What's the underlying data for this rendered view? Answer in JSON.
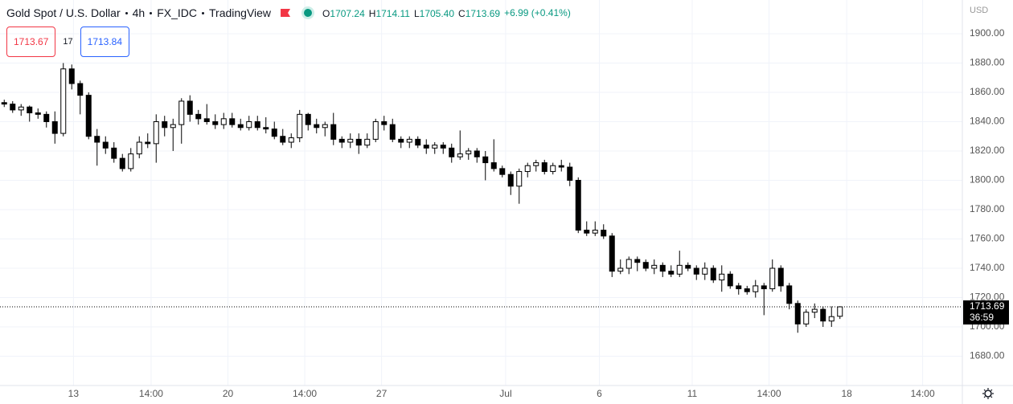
{
  "header": {
    "symbol": "Gold Spot / U.S. Dollar",
    "interval": "4h",
    "source": "FX_IDC",
    "provider": "TradingView",
    "ohlc": [
      {
        "label": "O",
        "value": "1707.24"
      },
      {
        "label": "H",
        "value": "1714.11"
      },
      {
        "label": "L",
        "value": "1705.40"
      },
      {
        "label": "C",
        "value": "1713.69"
      }
    ],
    "change": "+6.99 (+0.41%)",
    "sell": "1713.67",
    "spread": "17",
    "buy": "1713.84",
    "currency": "USD"
  },
  "chart_data": {
    "type": "candlestick",
    "up_color": "#ffffff",
    "down_color": "#000000",
    "grid": true,
    "ylim": [
      1660,
      1923
    ],
    "xlim": [
      0,
      114
    ],
    "yticks": [
      {
        "value": 1680,
        "label": "1680.00"
      },
      {
        "value": 1700,
        "label": "1700.00"
      },
      {
        "value": 1720,
        "label": "1720.00"
      },
      {
        "value": 1740,
        "label": "1740.00"
      },
      {
        "value": 1760,
        "label": "1760.00"
      },
      {
        "value": 1780,
        "label": "1780.00"
      },
      {
        "value": 1800,
        "label": "1800.00"
      },
      {
        "value": 1820,
        "label": "1820.00"
      },
      {
        "value": 1840,
        "label": "1840.00"
      },
      {
        "value": 1860,
        "label": "1860.00"
      },
      {
        "value": 1880,
        "label": "1880.00"
      },
      {
        "value": 1900,
        "label": "1900.00"
      }
    ],
    "xticks": [
      {
        "value": 8.7,
        "label": "13"
      },
      {
        "value": 17.9,
        "label": "14:00"
      },
      {
        "value": 27,
        "label": "20"
      },
      {
        "value": 36.1,
        "label": "14:00"
      },
      {
        "value": 45.2,
        "label": "27"
      },
      {
        "value": 59.9,
        "label": "Jul"
      },
      {
        "value": 71,
        "label": "6"
      },
      {
        "value": 82,
        "label": "11"
      },
      {
        "value": 91.1,
        "label": "14:00"
      },
      {
        "value": 100.3,
        "label": "18"
      },
      {
        "value": 109.3,
        "label": "14:00"
      }
    ],
    "last_price": 1713.69,
    "countdown": "36:59",
    "open": [
      1853,
      1852,
      1848,
      1850,
      1846,
      1845,
      1840,
      1832,
      1876,
      1866,
      1858,
      1830,
      1826,
      1822,
      1815,
      1808,
      1818,
      1826,
      1825,
      1840,
      1836,
      1838,
      1854,
      1845,
      1842,
      1840,
      1838,
      1842,
      1838,
      1836,
      1840,
      1836,
      1835,
      1830,
      1826,
      1829,
      1845,
      1838,
      1836,
      1838,
      1828,
      1826,
      1828,
      1824,
      1828,
      1840,
      1838,
      1828,
      1826,
      1828,
      1824,
      1822,
      1824,
      1822,
      1816,
      1818,
      1820,
      1816,
      1812,
      1808,
      1804,
      1796,
      1806,
      1810,
      1812,
      1806,
      1810,
      1809,
      1800,
      1766,
      1764,
      1766,
      1762,
      1738,
      1740,
      1746,
      1744,
      1740,
      1742,
      1738,
      1736,
      1742,
      1740,
      1736,
      1740,
      1732,
      1736,
      1728,
      1726,
      1724,
      1728,
      1726,
      1740,
      1728,
      1716,
      1702,
      1710,
      1712,
      1704,
      1707.24
    ],
    "high": [
      1855,
      1854,
      1852,
      1851,
      1849,
      1847,
      1847,
      1880,
      1879,
      1868,
      1860,
      1835,
      1830,
      1826,
      1818,
      1822,
      1830,
      1832,
      1845,
      1844,
      1842,
      1856,
      1858,
      1848,
      1852,
      1845,
      1846,
      1846,
      1842,
      1844,
      1844,
      1843,
      1840,
      1835,
      1832,
      1848,
      1846,
      1842,
      1840,
      1846,
      1830,
      1832,
      1832,
      1832,
      1842,
      1844,
      1842,
      1830,
      1830,
      1830,
      1828,
      1826,
      1826,
      1825,
      1834,
      1822,
      1822,
      1820,
      1828,
      1810,
      1806,
      1808,
      1812,
      1814,
      1814,
      1812,
      1814,
      1812,
      1802,
      1772,
      1772,
      1770,
      1764,
      1746,
      1748,
      1748,
      1746,
      1746,
      1744,
      1742,
      1752,
      1744,
      1742,
      1744,
      1742,
      1742,
      1738,
      1730,
      1728,
      1732,
      1730,
      1746,
      1742,
      1730,
      1718,
      1712,
      1716,
      1714,
      1714,
      1714.11
    ],
    "low": [
      1850,
      1846,
      1844,
      1840,
      1842,
      1836,
      1825,
      1830,
      1862,
      1845,
      1828,
      1810,
      1818,
      1812,
      1806,
      1806,
      1815,
      1822,
      1812,
      1830,
      1820,
      1825,
      1840,
      1838,
      1838,
      1835,
      1835,
      1836,
      1834,
      1834,
      1834,
      1832,
      1828,
      1824,
      1822,
      1826,
      1834,
      1832,
      1830,
      1824,
      1822,
      1822,
      1818,
      1822,
      1826,
      1834,
      1826,
      1822,
      1822,
      1822,
      1818,
      1818,
      1818,
      1812,
      1814,
      1814,
      1812,
      1800,
      1806,
      1802,
      1790,
      1784,
      1802,
      1806,
      1804,
      1804,
      1806,
      1796,
      1764,
      1762,
      1762,
      1760,
      1734,
      1736,
      1736,
      1738,
      1738,
      1736,
      1734,
      1734,
      1734,
      1738,
      1732,
      1732,
      1730,
      1724,
      1726,
      1722,
      1722,
      1720,
      1708,
      1724,
      1724,
      1712,
      1696,
      1700,
      1706,
      1700,
      1700,
      1705.4
    ],
    "close": [
      1852,
      1848,
      1850,
      1846,
      1845,
      1840,
      1832,
      1876,
      1866,
      1858,
      1830,
      1826,
      1822,
      1815,
      1808,
      1818,
      1826,
      1825,
      1840,
      1836,
      1838,
      1854,
      1845,
      1842,
      1840,
      1838,
      1842,
      1838,
      1836,
      1840,
      1836,
      1835,
      1830,
      1826,
      1829,
      1845,
      1838,
      1836,
      1838,
      1828,
      1826,
      1828,
      1824,
      1828,
      1840,
      1838,
      1828,
      1826,
      1828,
      1824,
      1822,
      1824,
      1822,
      1816,
      1818,
      1820,
      1816,
      1812,
      1808,
      1804,
      1796,
      1806,
      1810,
      1812,
      1806,
      1810,
      1809,
      1800,
      1766,
      1764,
      1766,
      1762,
      1738,
      1740,
      1746,
      1744,
      1740,
      1742,
      1738,
      1736,
      1742,
      1740,
      1736,
      1740,
      1732,
      1736,
      1728,
      1726,
      1724,
      1728,
      1726,
      1740,
      1728,
      1716,
      1702,
      1710,
      1712,
      1704,
      1707,
      1713.69
    ]
  }
}
